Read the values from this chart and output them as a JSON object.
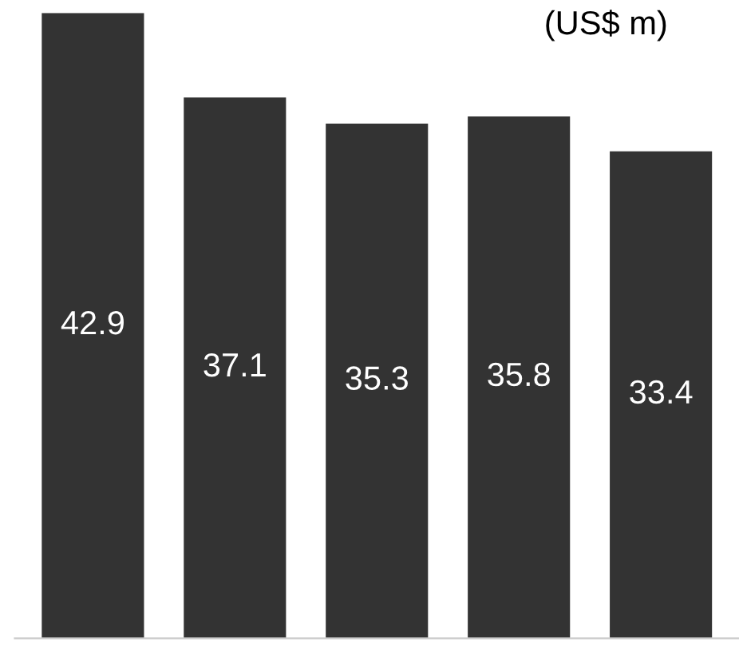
{
  "chart_data": {
    "type": "bar",
    "title": "(US$ m)",
    "categories": [
      null,
      null,
      null,
      null,
      null
    ],
    "values": [
      42.9,
      37.1,
      35.3,
      35.8,
      33.4
    ],
    "color": "#333333",
    "data_labels": true,
    "grid": false
  }
}
